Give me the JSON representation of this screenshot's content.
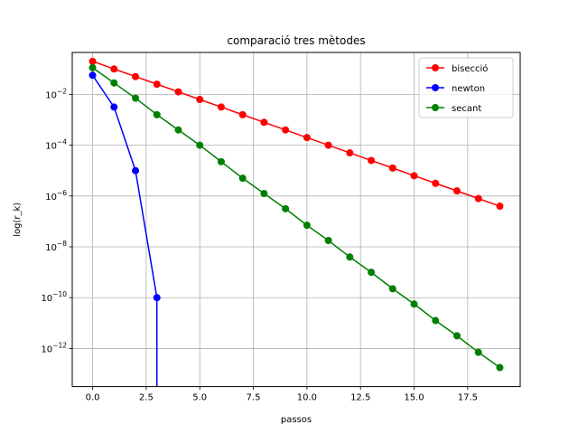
{
  "chart_data": {
    "type": "line",
    "title": "comparació tres mètodes",
    "xlabel": "passos",
    "ylabel": "log(r_k)",
    "yscale": "log",
    "grid": true,
    "legend_position": "top-right",
    "xlim": [
      -0.95,
      19.95
    ],
    "ylim_log10": [
      -13.5,
      -0.35
    ],
    "x_ticks": [
      0,
      2.5,
      5,
      7.5,
      10,
      12.5,
      15,
      17.5
    ],
    "x_tick_labels": [
      "0.0",
      "2.5",
      "5.0",
      "7.5",
      "10.0",
      "12.5",
      "15.0",
      "17.5"
    ],
    "y_tick_exponents": [
      -2,
      -4,
      -6,
      -8,
      -10,
      -12
    ],
    "y_tick_base": "10",
    "series": [
      {
        "name": "bisecció",
        "color": "#ff0000",
        "x": [
          0,
          1,
          2,
          3,
          4,
          5,
          6,
          7,
          8,
          9,
          10,
          11,
          12,
          13,
          14,
          15,
          16,
          17,
          18,
          19
        ],
        "log10_y": [
          -0.7,
          -1.0,
          -1.3,
          -1.6,
          -1.9,
          -2.2,
          -2.5,
          -2.8,
          -3.1,
          -3.4,
          -3.7,
          -4.0,
          -4.3,
          -4.6,
          -4.9,
          -5.2,
          -5.5,
          -5.8,
          -6.1,
          -6.4
        ],
        "clipped_at_end": false
      },
      {
        "name": "newton",
        "color": "#0000ff",
        "x": [
          0,
          1,
          2,
          3
        ],
        "log10_y": [
          -1.25,
          -2.5,
          -5.0,
          -10.0
        ],
        "clipped_at_end": true
      },
      {
        "name": "secant",
        "color": "#008000",
        "x": [
          0,
          1,
          2,
          3,
          4,
          5,
          6,
          7,
          8,
          9,
          10,
          11,
          12,
          13,
          14,
          15,
          16,
          17,
          18,
          19
        ],
        "log10_y": [
          -0.95,
          -1.55,
          -2.15,
          -2.8,
          -3.4,
          -4.0,
          -4.65,
          -5.3,
          -5.9,
          -6.5,
          -7.15,
          -7.75,
          -8.4,
          -9.0,
          -9.65,
          -10.25,
          -10.9,
          -11.5,
          -12.15,
          -12.75
        ],
        "clipped_at_end": false
      }
    ]
  }
}
